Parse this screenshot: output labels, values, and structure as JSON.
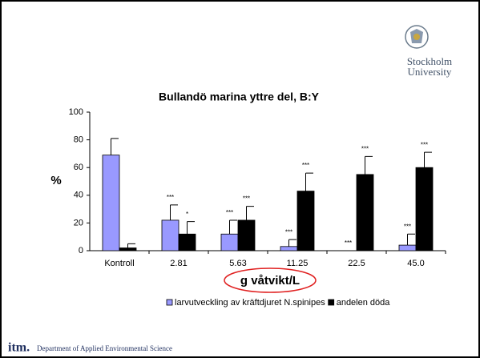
{
  "logo": {
    "line1": "Stockholm",
    "line2": "University"
  },
  "footer": {
    "brand": "itm.",
    "text": "Department of Applied Environmental Science"
  },
  "chart_data": {
    "type": "bar",
    "title": "Bullandö marina yttre del, B:Y",
    "y_label": "%",
    "x_label": "g våtvikt/L",
    "categories": [
      "Kontroll",
      "2.81",
      "5.63",
      "11.25",
      "22.5",
      "45.0"
    ],
    "series": [
      {
        "name": "larvutveckling av kräftdjuret N.spinipes",
        "color": "#9999ff",
        "values": [
          69,
          22,
          12,
          3,
          0,
          4
        ],
        "errors": [
          12,
          11,
          10,
          5,
          0,
          8
        ],
        "significance": [
          null,
          "***",
          "***",
          "***",
          "***",
          "***"
        ]
      },
      {
        "name": "andelen döda",
        "color": "#000000",
        "values": [
          2,
          12,
          22,
          43,
          55,
          60
        ],
        "errors": [
          3,
          9,
          10,
          13,
          13,
          11
        ],
        "significance": [
          null,
          "*",
          "***",
          "***",
          "***",
          "***"
        ]
      }
    ],
    "ylim": [
      0,
      100
    ],
    "yticks": [
      0,
      20,
      40,
      60,
      80,
      100
    ],
    "grid": false
  }
}
